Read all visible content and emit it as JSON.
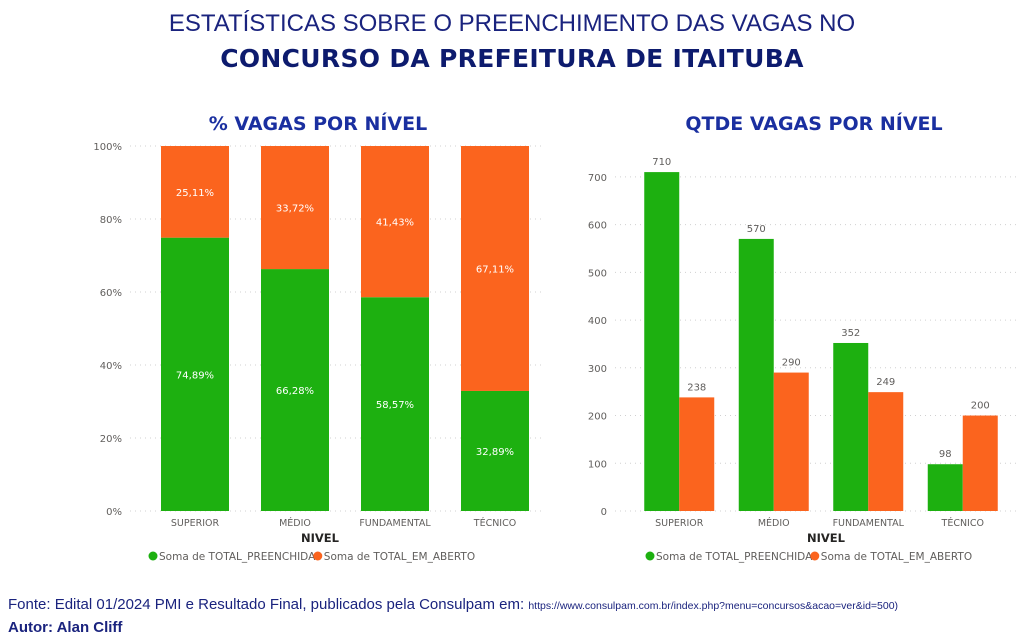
{
  "header": {
    "line1": "ESTATÍSTICAS SOBRE O PREENCHIMENTO DAS VAGAS NO",
    "line2": "CONCURSO DA PREFEITURA DE ITAITUBA"
  },
  "colors": {
    "filled": "#1db010",
    "open": "#fb641e",
    "title": "#1a2fa0",
    "axis_text": "#605e5c"
  },
  "chart_data": [
    {
      "type": "bar",
      "stacked": true,
      "percent": true,
      "title": "% VAGAS POR NÍVEL",
      "xlabel": "NIVEL",
      "ylabel": "",
      "ylim": [
        0,
        100
      ],
      "yticks": [
        "0%",
        "20%",
        "40%",
        "60%",
        "80%",
        "100%"
      ],
      "categories": [
        "SUPERIOR",
        "MÉDIO",
        "FUNDAMENTAL",
        "TÉCNICO"
      ],
      "series": [
        {
          "name": "Soma de TOTAL_PREENCHIDA",
          "values": [
            74.89,
            66.28,
            58.57,
            32.89
          ],
          "labels": [
            "74,89%",
            "66,28%",
            "58,57%",
            "32,89%"
          ]
        },
        {
          "name": "Soma de TOTAL_EM_ABERTO",
          "values": [
            25.11,
            33.72,
            41.43,
            67.11
          ],
          "labels": [
            "25,11%",
            "33,72%",
            "41,43%",
            "67,11%"
          ]
        }
      ],
      "legend": "bottom",
      "grid": true
    },
    {
      "type": "bar",
      "stacked": false,
      "title": "QTDE VAGAS POR NÍVEL",
      "xlabel": "NIVEL",
      "ylabel": "",
      "ylim": [
        0,
        750
      ],
      "yticks": [
        "0",
        "100",
        "200",
        "300",
        "400",
        "500",
        "600",
        "700"
      ],
      "categories": [
        "SUPERIOR",
        "MÉDIO",
        "FUNDAMENTAL",
        "TÉCNICO"
      ],
      "series": [
        {
          "name": "Soma de TOTAL_PREENCHIDA",
          "values": [
            710,
            570,
            352,
            98
          ],
          "labels": [
            "710",
            "570",
            "352",
            "98"
          ]
        },
        {
          "name": "Soma de TOTAL_EM_ABERTO",
          "values": [
            238,
            290,
            249,
            200
          ],
          "labels": [
            "238",
            "290",
            "249",
            "200"
          ]
        }
      ],
      "legend": "bottom",
      "grid": true
    }
  ],
  "footer": {
    "source_text": "Fonte: Edital 01/2024 PMI e Resultado Final, publicados pela Consulpam em: ",
    "source_url": "https://www.consulpam.com.br/index.php?menu=concursos&acao=ver&id=500)",
    "author": "Autor: Alan Cliff"
  }
}
